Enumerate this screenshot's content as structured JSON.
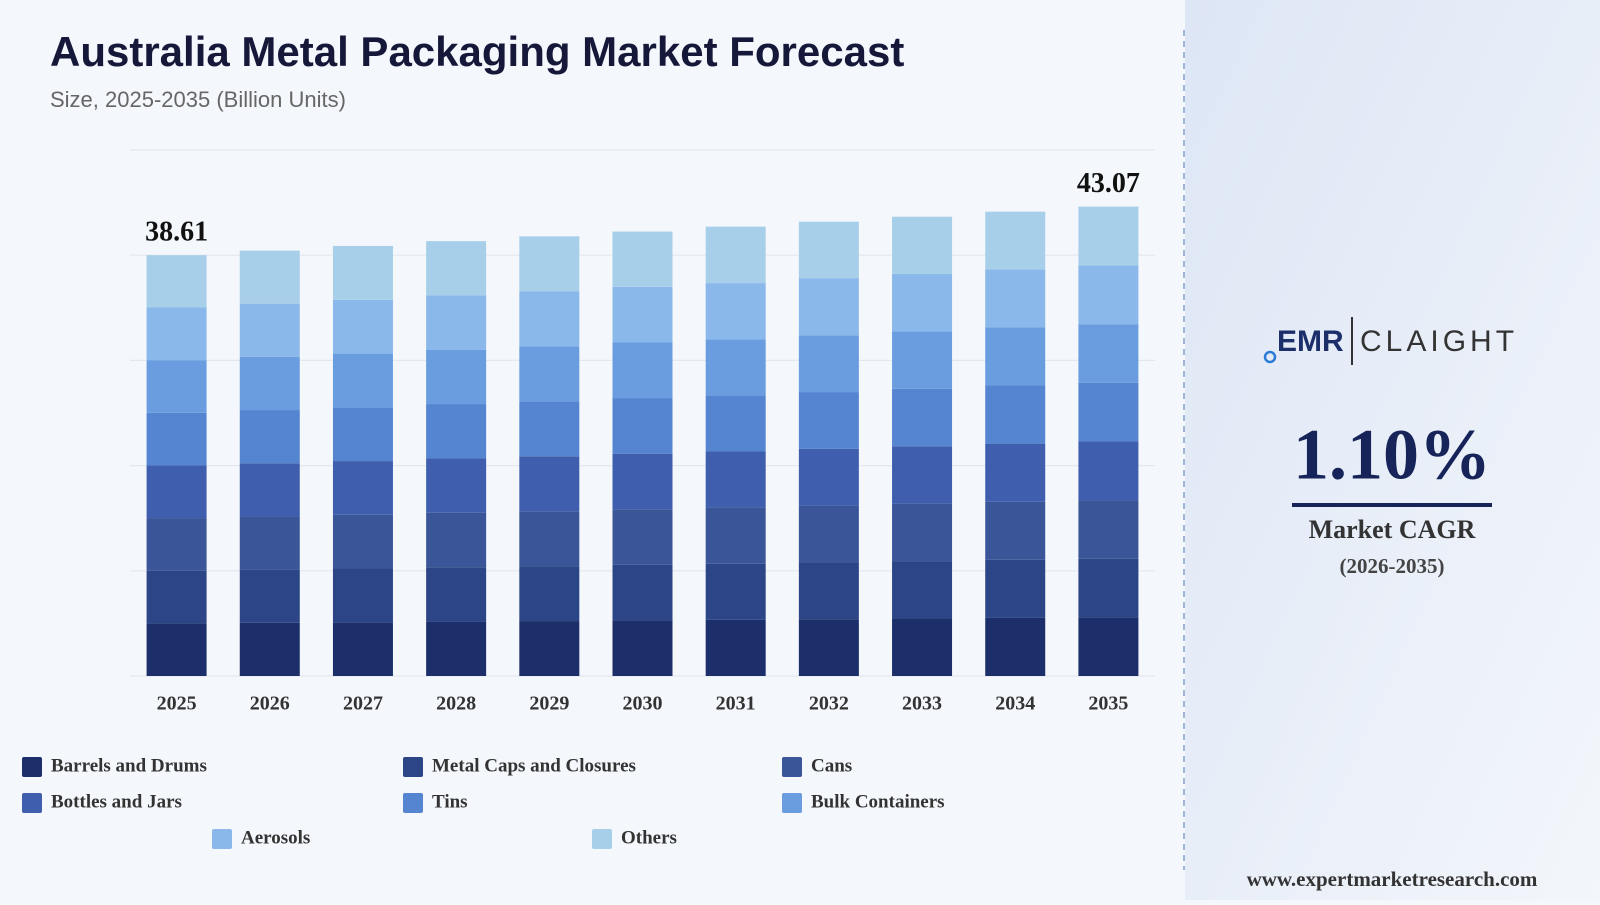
{
  "chart_data": {
    "type": "stacked_bar",
    "title": "Australia Metal Packaging Market Forecast",
    "subtitle": "Size, 2025-2035 (Billion Units)",
    "categories": [
      "2025",
      "2026",
      "2027",
      "2028",
      "2029",
      "2030",
      "2031",
      "2032",
      "2033",
      "2034",
      "2035"
    ],
    "ylim": [
      0,
      48.26
    ],
    "yticks": [
      0,
      9.65,
      19.3,
      28.96,
      38.61,
      48.26
    ],
    "grid": true,
    "series": [
      {
        "name": "Barrels and Drums",
        "color": "#1c2f6b",
        "values": [
          4.83,
          4.88,
          4.93,
          4.99,
          5.04,
          5.1,
          5.15,
          5.21,
          5.27,
          5.33,
          5.38
        ]
      },
      {
        "name": "Metal Caps and Closures",
        "color": "#2b4586",
        "values": [
          4.83,
          4.88,
          4.93,
          4.99,
          5.04,
          5.1,
          5.15,
          5.21,
          5.27,
          5.33,
          5.38
        ]
      },
      {
        "name": "Cans",
        "color": "#3a5698",
        "values": [
          4.83,
          4.88,
          4.93,
          4.99,
          5.04,
          5.1,
          5.15,
          5.21,
          5.27,
          5.33,
          5.38
        ]
      },
      {
        "name": "Bottles and Jars",
        "color": "#3f5fae",
        "values": [
          4.83,
          4.88,
          4.93,
          4.99,
          5.04,
          5.1,
          5.15,
          5.21,
          5.27,
          5.33,
          5.38
        ]
      },
      {
        "name": "Tins",
        "color": "#5585d0",
        "values": [
          4.83,
          4.88,
          4.93,
          4.99,
          5.04,
          5.1,
          5.15,
          5.21,
          5.27,
          5.33,
          5.38
        ]
      },
      {
        "name": "Bulk Containers",
        "color": "#6a9de0",
        "values": [
          4.83,
          4.88,
          4.93,
          4.99,
          5.04,
          5.1,
          5.15,
          5.21,
          5.27,
          5.33,
          5.38
        ]
      },
      {
        "name": "Aerosols",
        "color": "#8ab8ea",
        "values": [
          4.83,
          4.88,
          4.93,
          4.99,
          5.04,
          5.1,
          5.15,
          5.21,
          5.27,
          5.33,
          5.38
        ]
      },
      {
        "name": "Others",
        "color": "#a8cfe9",
        "values": [
          4.8,
          4.87,
          4.95,
          4.97,
          5.06,
          5.08,
          5.18,
          5.21,
          5.25,
          5.29,
          5.41
        ]
      }
    ],
    "annotations": [
      {
        "x": "2025",
        "value": 38.61
      },
      {
        "x": "2035",
        "value": 43.07
      }
    ]
  },
  "sidebar": {
    "logo_left": "EMR",
    "logo_right": "CLAIGHT",
    "cagr": {
      "value": 1.1,
      "label": "1.10%"
    },
    "cagr_label": "Market CAGR",
    "cagr_period": "(2026-2035)",
    "website": "www.expertmarketresearch.com"
  }
}
